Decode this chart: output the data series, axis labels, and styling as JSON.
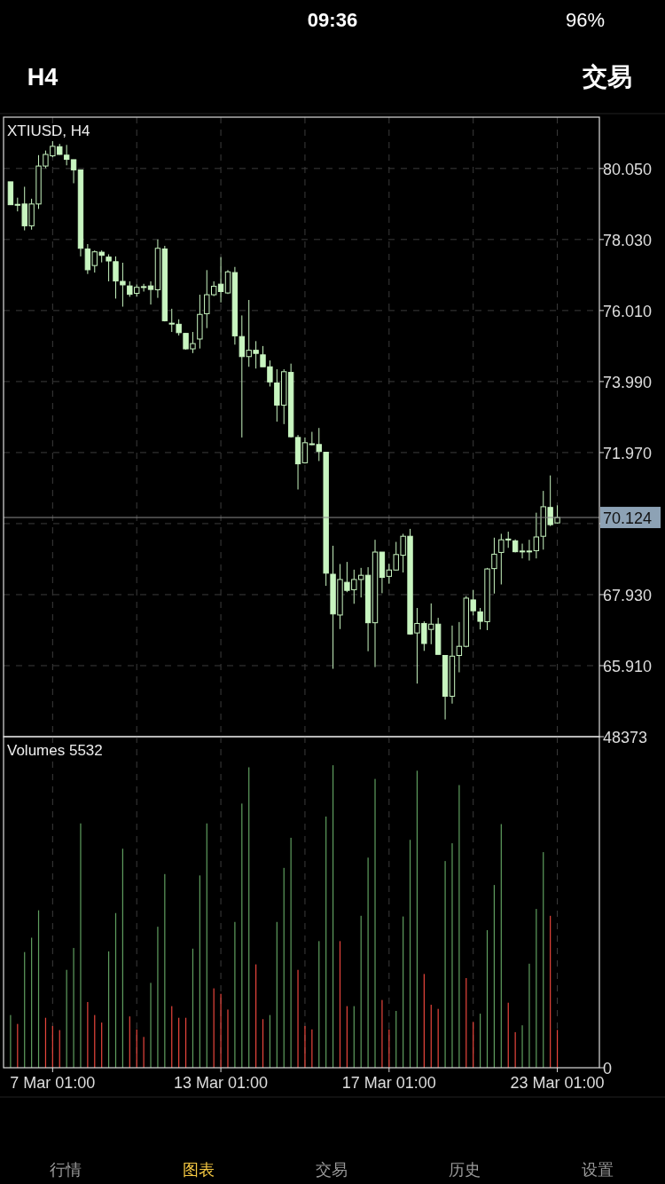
{
  "chart_data": [
    {
      "type": "candlestick",
      "title": "XTIUSD, H4",
      "categories": [
        null,
        null,
        null,
        null,
        null,
        null,
        null,
        null,
        null,
        null,
        null,
        null,
        null,
        null,
        null,
        null,
        null,
        null,
        null,
        null,
        null,
        null,
        null,
        null,
        null,
        null,
        null,
        null,
        null,
        null,
        null,
        null,
        null,
        null,
        null,
        null,
        null,
        null,
        null,
        null,
        null,
        null,
        null,
        null,
        null,
        null,
        null,
        null,
        null,
        null,
        null,
        null,
        null,
        null,
        null,
        null,
        null,
        null,
        null,
        null,
        null,
        null,
        null,
        null,
        null,
        null,
        null,
        null,
        null,
        null,
        null,
        null,
        null,
        null,
        null,
        null,
        null,
        null,
        null
      ],
      "ohlc": [
        [
          79.67,
          79.67,
          79.01,
          79.02
        ],
        [
          79.03,
          79.22,
          78.83,
          79.03
        ],
        [
          79.04,
          79.53,
          78.29,
          78.42
        ],
        [
          78.42,
          79.19,
          78.31,
          79.04
        ],
        [
          79.04,
          80.43,
          78.9,
          80.12
        ],
        [
          80.12,
          80.56,
          80.06,
          80.45
        ],
        [
          80.41,
          80.83,
          80.37,
          80.68
        ],
        [
          80.67,
          80.75,
          80.44,
          80.45
        ],
        [
          80.43,
          80.72,
          80.14,
          80.31
        ],
        [
          80.3,
          80.3,
          79.63,
          80.01
        ],
        [
          80.01,
          80.01,
          77.55,
          77.78
        ],
        [
          77.76,
          77.9,
          77.05,
          77.17
        ],
        [
          77.29,
          77.72,
          77.09,
          77.68
        ],
        [
          77.67,
          77.72,
          77.38,
          77.58
        ],
        [
          77.53,
          77.61,
          76.84,
          77.42
        ],
        [
          77.4,
          77.55,
          76.35,
          76.85
        ],
        [
          76.84,
          77.37,
          76.12,
          76.74
        ],
        [
          76.71,
          76.84,
          76.4,
          76.47
        ],
        [
          76.5,
          76.75,
          76.41,
          76.67
        ],
        [
          76.69,
          76.77,
          76.55,
          76.69
        ],
        [
          76.71,
          76.84,
          76.18,
          76.61
        ],
        [
          76.6,
          78.03,
          76.37,
          77.78
        ],
        [
          77.76,
          77.85,
          75.7,
          75.72
        ],
        [
          75.65,
          76.06,
          75.4,
          75.63
        ],
        [
          75.62,
          75.76,
          75.3,
          75.38
        ],
        [
          75.36,
          75.36,
          74.9,
          74.92
        ],
        [
          74.92,
          75.4,
          74.8,
          75.07
        ],
        [
          75.2,
          76.46,
          74.93,
          75.9
        ],
        [
          75.92,
          77.16,
          75.51,
          76.46
        ],
        [
          76.46,
          76.84,
          76.42,
          76.7
        ],
        [
          76.76,
          77.53,
          76.24,
          76.55
        ],
        [
          76.51,
          77.16,
          76.48,
          77.11
        ],
        [
          77.09,
          77.25,
          75.04,
          75.29
        ],
        [
          75.27,
          75.87,
          72.4,
          74.7
        ],
        [
          74.7,
          76.31,
          74.41,
          74.88
        ],
        [
          74.88,
          75.14,
          74.36,
          74.79
        ],
        [
          74.75,
          75.0,
          74.41,
          74.41
        ],
        [
          74.41,
          74.59,
          73.85,
          73.98
        ],
        [
          73.95,
          74.34,
          72.85,
          73.32
        ],
        [
          73.32,
          74.34,
          72.78,
          74.27
        ],
        [
          74.25,
          74.5,
          72.4,
          72.42
        ],
        [
          72.4,
          72.47,
          70.92,
          71.65
        ],
        [
          71.68,
          72.4,
          71.66,
          72.25
        ],
        [
          72.22,
          72.56,
          72.18,
          72.22
        ],
        [
          72.2,
          72.67,
          71.73,
          72.0
        ],
        [
          71.98,
          71.98,
          68.18,
          68.54
        ],
        [
          68.51,
          69.32,
          65.82,
          67.38
        ],
        [
          67.35,
          68.8,
          66.95,
          68.36
        ],
        [
          68.28,
          68.86,
          68.0,
          68.05
        ],
        [
          68.07,
          68.64,
          67.67,
          68.36
        ],
        [
          68.36,
          68.69,
          67.85,
          68.48
        ],
        [
          68.48,
          68.71,
          66.32,
          67.13
        ],
        [
          67.13,
          69.49,
          65.87,
          69.14
        ],
        [
          69.14,
          69.14,
          67.97,
          68.42
        ],
        [
          68.45,
          68.81,
          68.24,
          68.63
        ],
        [
          68.63,
          69.43,
          68.62,
          69.07
        ],
        [
          69.05,
          69.66,
          68.56,
          69.59
        ],
        [
          69.59,
          69.8,
          66.79,
          66.81
        ],
        [
          66.84,
          67.55,
          65.4,
          67.11
        ],
        [
          67.11,
          67.17,
          66.33,
          66.54
        ],
        [
          66.94,
          67.68,
          66.52,
          67.09
        ],
        [
          67.09,
          67.27,
          66.23,
          66.23
        ],
        [
          66.2,
          66.2,
          64.38,
          65.04
        ],
        [
          65.04,
          67.05,
          64.83,
          66.18
        ],
        [
          66.2,
          67.15,
          65.72,
          66.46
        ],
        [
          66.46,
          67.89,
          66.43,
          67.83
        ],
        [
          67.78,
          68.06,
          67.34,
          67.47
        ],
        [
          67.44,
          67.55,
          66.94,
          67.17
        ],
        [
          67.16,
          68.69,
          66.92,
          68.66
        ],
        [
          68.67,
          69.55,
          67.96,
          69.08
        ],
        [
          69.13,
          69.66,
          68.22,
          69.49
        ],
        [
          69.51,
          69.72,
          69.26,
          69.51
        ],
        [
          69.46,
          69.5,
          69.13,
          69.15
        ],
        [
          69.17,
          69.38,
          68.96,
          69.17
        ],
        [
          69.17,
          69.49,
          68.9,
          69.17
        ],
        [
          69.18,
          70.26,
          68.96,
          69.57
        ],
        [
          69.59,
          70.88,
          69.21,
          70.43
        ],
        [
          70.41,
          71.32,
          69.88,
          69.92
        ],
        [
          69.97,
          70.47,
          69.95,
          70.124
        ]
      ],
      "color": "#c8f5c0",
      "ylim": [
        63.89,
        81.51
      ],
      "yticks": [
        {
          "value": 65.91,
          "label": "65.910"
        },
        {
          "value": 67.93,
          "label": "67.930"
        },
        {
          "value": 69.95,
          "label": null
        },
        {
          "value": 71.97,
          "label": "71.970"
        },
        {
          "value": 73.99,
          "label": "73.990"
        },
        {
          "value": 76.01,
          "label": "76.010"
        },
        {
          "value": 78.03,
          "label": "78.030"
        },
        {
          "value": 80.05,
          "label": "80.050"
        }
      ],
      "tick_labels": "y",
      "grid": true,
      "ref_lines": [
        {
          "axis": "y",
          "value": 70.124,
          "label": "70.124",
          "color": "#8c8c8c"
        }
      ],
      "annotations": [
        "09:36",
        "96%",
        "H4",
        "交易",
        "行情",
        "图表",
        "交易",
        "历史",
        "设置"
      ]
    },
    {
      "type": "bar",
      "title": "Volumes 5532",
      "categories": [
        null,
        null,
        null,
        null,
        null,
        null,
        "7 Mar 01:00",
        null,
        null,
        null,
        null,
        null,
        null,
        null,
        null,
        null,
        null,
        null,
        null,
        null,
        null,
        null,
        null,
        null,
        null,
        null,
        null,
        null,
        null,
        null,
        "13 Mar 01:00",
        null,
        null,
        null,
        null,
        null,
        null,
        null,
        null,
        null,
        null,
        null,
        null,
        null,
        null,
        null,
        null,
        null,
        null,
        null,
        null,
        null,
        null,
        null,
        "17 Mar 01:00",
        null,
        null,
        null,
        null,
        null,
        null,
        null,
        null,
        null,
        null,
        null,
        null,
        null,
        null,
        null,
        null,
        null,
        null,
        null,
        null,
        null,
        null,
        null,
        "23 Mar 01:00"
      ],
      "values": [
        7700,
        6400,
        16900,
        19000,
        23000,
        7300,
        6100,
        5500,
        14300,
        17500,
        35700,
        9600,
        7700,
        6600,
        17000,
        22600,
        32000,
        7500,
        5600,
        4500,
        12400,
        20600,
        28300,
        9000,
        7300,
        7300,
        17400,
        28100,
        35700,
        11600,
        10800,
        8500,
        21300,
        38600,
        43900,
        15100,
        7100,
        7700,
        21300,
        29200,
        33600,
        14300,
        6100,
        5600,
        18500,
        36700,
        44200,
        18500,
        9000,
        9000,
        22200,
        30700,
        42200,
        9900,
        5600,
        8300,
        22100,
        33300,
        43400,
        13700,
        9200,
        8600,
        30200,
        32800,
        41300,
        13100,
        6700,
        7900,
        20100,
        26700,
        35600,
        9500,
        5200,
        6200,
        15200,
        23200,
        31500,
        22200,
        5532
      ],
      "colors": [
        "#5f9e5f",
        "#e8453c",
        "#5f9e5f",
        "#5f9e5f",
        "#5f9e5f",
        "#e8453c",
        "#e8453c",
        "#e8453c",
        "#5f9e5f",
        "#5f9e5f",
        "#5f9e5f",
        "#e8453c",
        "#e8453c",
        "#e8453c",
        "#5f9e5f",
        "#5f9e5f",
        "#5f9e5f",
        "#e8453c",
        "#e8453c",
        "#e8453c",
        "#5f9e5f",
        "#5f9e5f",
        "#5f9e5f",
        "#e8453c",
        "#e8453c",
        "#e8453c",
        "#5f9e5f",
        "#5f9e5f",
        "#5f9e5f",
        "#e8453c",
        "#e8453c",
        "#e8453c",
        "#5f9e5f",
        "#5f9e5f",
        "#5f9e5f",
        "#e8453c",
        "#e8453c",
        "#5f9e5f",
        "#5f9e5f",
        "#5f9e5f",
        "#5f9e5f",
        "#e8453c",
        "#e8453c",
        "#e8453c",
        "#5f9e5f",
        "#5f9e5f",
        "#5f9e5f",
        "#e8453c",
        "#e8453c",
        "#5f9e5f",
        "#5f9e5f",
        "#5f9e5f",
        "#5f9e5f",
        "#e8453c",
        "#e8453c",
        "#5f9e5f",
        "#5f9e5f",
        "#5f9e5f",
        "#5f9e5f",
        "#e8453c",
        "#e8453c",
        "#e8453c",
        "#5f9e5f",
        "#5f9e5f",
        "#5f9e5f",
        "#e8453c",
        "#e8453c",
        "#5f9e5f",
        "#5f9e5f",
        "#5f9e5f",
        "#5f9e5f",
        "#e8453c",
        "#e8453c",
        "#5f9e5f",
        "#5f9e5f",
        "#5f9e5f",
        "#5f9e5f",
        "#e8453c",
        "#e8453c"
      ],
      "ylim": [
        0,
        48373
      ],
      "yticks": [
        0,
        48373
      ],
      "grid": "x"
    }
  ]
}
